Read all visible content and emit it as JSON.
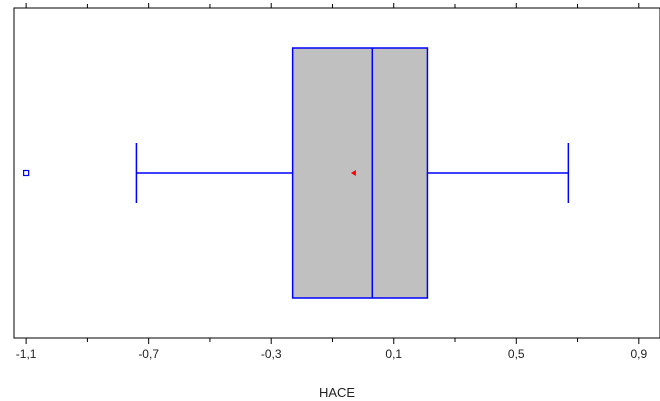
{
  "chart_data": {
    "type": "boxplot",
    "xlabel": "HACE",
    "xlim": [
      -1.12,
      0.93
    ],
    "x_ticks": [
      -1.1,
      -0.7,
      -0.3,
      0.1,
      0.5,
      0.9
    ],
    "x_tick_labels": [
      "-1,1",
      "-0,7",
      "-0,3",
      "0,1",
      "0,5",
      "0,9"
    ],
    "box": {
      "whisker_low": -0.74,
      "q1": -0.23,
      "median": 0.03,
      "q3": 0.21,
      "whisker_high": 0.67,
      "mean": -0.03,
      "outliers": [
        -1.1
      ]
    },
    "grid": false,
    "colors": {
      "box_fill": "#c0c0c0",
      "box_line": "#0000ff",
      "mean_marker": "#ff0000",
      "axis": "#000000"
    }
  }
}
